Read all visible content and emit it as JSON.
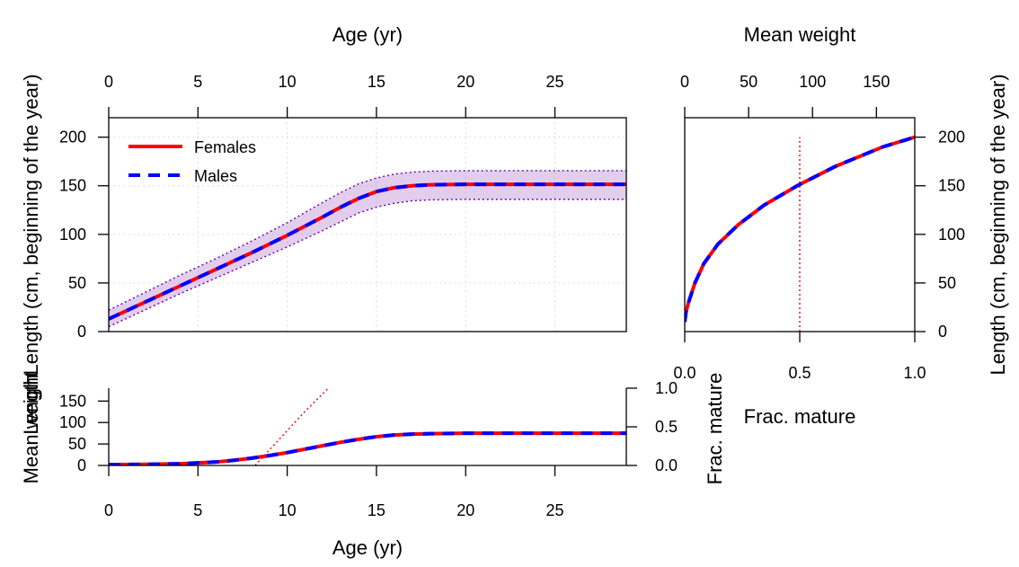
{
  "chart_data": [
    {
      "id": "length_at_age",
      "type": "line",
      "xlabel": "Age (yr)",
      "ylabel": "Length (cm, beginning of the year)",
      "xlim": [
        0,
        29
      ],
      "ylim": [
        0,
        220
      ],
      "xticks": [
        0,
        5,
        10,
        15,
        20,
        25
      ],
      "yticks": [
        0,
        50,
        100,
        150,
        200
      ],
      "grid": true,
      "legend_position": "top-left",
      "series": [
        {
          "name": "Females",
          "color": "#ff0000",
          "style": "solid",
          "x": [
            0,
            2,
            4,
            6,
            8,
            10,
            12,
            13,
            14,
            15,
            16,
            17,
            18,
            20,
            22,
            25,
            29
          ],
          "y": [
            13,
            30,
            47,
            64,
            81,
            99,
            118,
            128,
            137,
            144,
            148,
            150,
            151,
            151.5,
            151.5,
            151.5,
            151.5
          ]
        },
        {
          "name": "Males",
          "color": "#0000ff",
          "style": "dashed",
          "x": [
            0,
            2,
            4,
            6,
            8,
            10,
            12,
            13,
            14,
            15,
            16,
            17,
            18,
            20,
            22,
            25,
            29
          ],
          "y": [
            13,
            30,
            47,
            64,
            81,
            99,
            118,
            128,
            137,
            144,
            148,
            150,
            151,
            151.5,
            151.5,
            151.5,
            151.5
          ]
        }
      ],
      "band": {
        "color": "#b070c8",
        "x": [
          0,
          2,
          4,
          6,
          8,
          10,
          12,
          13,
          14,
          15,
          16,
          17,
          18,
          20,
          22,
          25,
          29
        ],
        "lower": [
          5,
          22,
          39,
          55,
          71,
          87,
          104,
          113,
          122,
          128,
          132,
          134.5,
          135.5,
          136,
          136,
          136,
          136
        ],
        "upper": [
          22,
          40,
          58,
          75,
          93,
          112,
          133,
          143,
          152,
          158,
          162,
          164,
          165,
          165.5,
          165.5,
          165.5,
          165.5
        ]
      }
    },
    {
      "id": "length_weight_maturity",
      "type": "line",
      "top_axis_label": "Mean weight",
      "bottom_axis_label": "Frac. mature",
      "ylabel": "Length (cm, beginning of the year)",
      "top_xlim": [
        0,
        180
      ],
      "top_xticks": [
        0,
        50,
        100,
        150
      ],
      "bottom_xlim": [
        0,
        1
      ],
      "bottom_xticks": [
        "0.0",
        "0.5",
        "1.0"
      ],
      "ylim": [
        0,
        220
      ],
      "yticks": [
        0,
        50,
        100,
        150,
        200
      ],
      "series": [
        {
          "name": "Females",
          "color": "#ff0000",
          "style": "solid",
          "weight": [
            0,
            1,
            3,
            8,
            15,
            26,
            42,
            62,
            88,
            118,
            155,
            180
          ],
          "length": [
            10,
            20,
            30,
            50,
            70,
            90,
            110,
            130,
            150,
            170,
            190,
            200
          ]
        },
        {
          "name": "Males",
          "color": "#0000ff",
          "style": "dashed",
          "weight": [
            0,
            1,
            3,
            8,
            15,
            26,
            42,
            62,
            88,
            118,
            155,
            180
          ],
          "length": [
            10,
            20,
            30,
            50,
            70,
            90,
            110,
            130,
            150,
            170,
            190,
            200
          ]
        }
      ],
      "maturity_line": {
        "color": "#ff0000",
        "style": "dotted",
        "frac": 0.5,
        "length_range": [
          0,
          200
        ]
      }
    },
    {
      "id": "weight_maturity_at_age",
      "type": "line",
      "xlabel": "Age (yr)",
      "ylabel": "Mean weight",
      "ylabel_overprint": "Length",
      "right_label": "Frac. mature",
      "xlim": [
        0,
        29
      ],
      "ylim": [
        0,
        180
      ],
      "xticks": [
        0,
        5,
        10,
        15,
        20,
        25
      ],
      "yticks": [
        0,
        50,
        100,
        150
      ],
      "right_ylim": [
        0,
        1
      ],
      "right_yticks": [
        "0.0",
        "0.5",
        "1.0"
      ],
      "series": [
        {
          "name": "Females",
          "color": "#ff0000",
          "style": "solid",
          "x": [
            0,
            2,
            4,
            6,
            7,
            8,
            9,
            10,
            11,
            12,
            13,
            14,
            15,
            16,
            17,
            18,
            20,
            22,
            25,
            29
          ],
          "y": [
            2,
            2.5,
            4,
            8,
            12,
            17,
            23,
            30,
            38,
            46,
            54,
            61,
            67,
            71,
            73,
            74,
            75,
            75,
            75,
            75
          ]
        },
        {
          "name": "Males",
          "color": "#0000ff",
          "style": "dashed",
          "x": [
            0,
            2,
            4,
            6,
            7,
            8,
            9,
            10,
            11,
            12,
            13,
            14,
            15,
            16,
            17,
            18,
            20,
            22,
            25,
            29
          ],
          "y": [
            2,
            2.5,
            4,
            8,
            12,
            17,
            23,
            30,
            38,
            46,
            54,
            61,
            67,
            71,
            73,
            74,
            75,
            75,
            75,
            75
          ]
        }
      ],
      "maturity": {
        "color": "#ff0000",
        "style": "dotted",
        "x": [
          8.2,
          9,
          10,
          11,
          12,
          12.3
        ],
        "frac": [
          0,
          0.2,
          0.45,
          0.7,
          0.93,
          1.0
        ]
      }
    }
  ]
}
